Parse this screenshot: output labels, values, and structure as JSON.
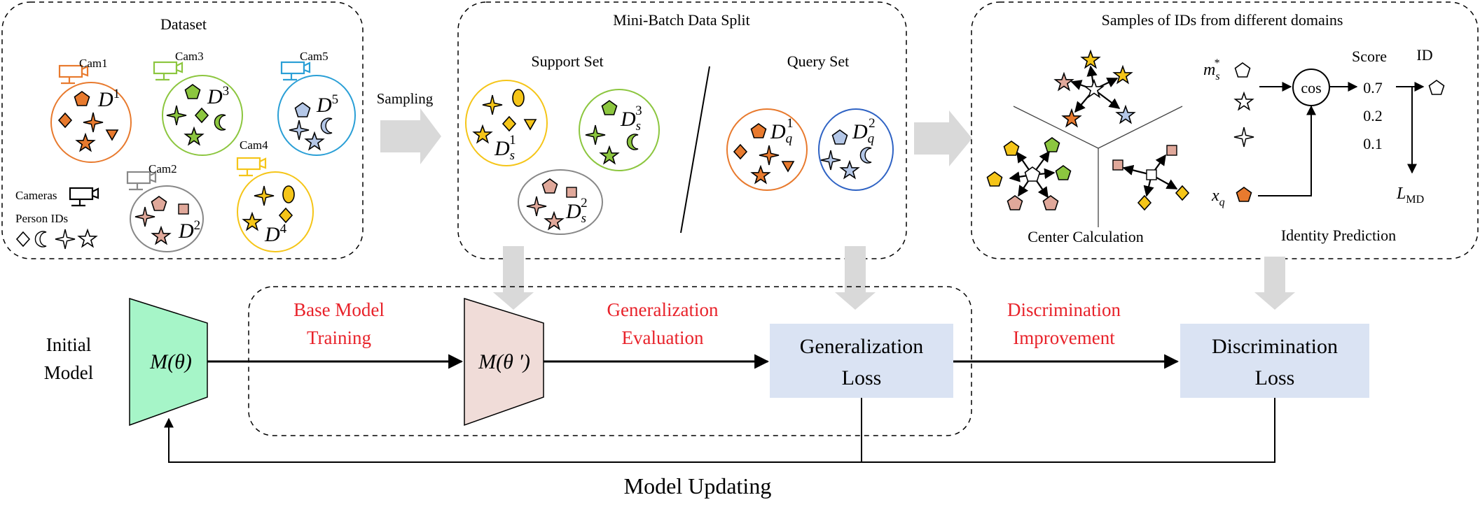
{
  "panels": {
    "dataset": {
      "title": "Dataset",
      "cams": [
        "Cam1",
        "Cam3",
        "Cam5",
        "Cam4",
        "Cam2"
      ],
      "domains": [
        "D",
        "D",
        "D",
        "D",
        "D"
      ],
      "domain_sups": [
        "1",
        "3",
        "5",
        "4",
        "2"
      ],
      "legend_cameras": "Cameras",
      "legend_ids": "Person IDs"
    },
    "minibatch": {
      "title": "Mini-Batch Data Split",
      "support": "Support Set",
      "query": "Query Set",
      "sets": [
        {
          "base": "D",
          "sub": "s",
          "sup": "1"
        },
        {
          "base": "D",
          "sub": "s",
          "sup": "3"
        },
        {
          "base": "D",
          "sub": "s",
          "sup": "2"
        },
        {
          "base": "D",
          "sub": "q",
          "sup": "1"
        },
        {
          "base": "D",
          "sub": "q",
          "sup": "2"
        }
      ]
    },
    "samples": {
      "title": "Samples of IDs from  different domains",
      "center": "Center Calculation",
      "identity": "Identity Prediction",
      "ms_base": "m",
      "ms_sub": "s",
      "ms_sup": "*",
      "xq_base": "x",
      "xq_sub": "q",
      "cos": "cos",
      "score_label": "Score",
      "scores": [
        "0.7",
        "0.2",
        "0.1"
      ],
      "id_label": "ID",
      "lmd_base": "L",
      "lmd_sub": "MD"
    }
  },
  "flow": {
    "sampling": "Sampling",
    "initial_model": [
      "Initial",
      "Model"
    ],
    "model_theta": "M(θ)",
    "model_theta_prime": "M(θ ′)",
    "base_training": [
      "Base Model",
      "Training"
    ],
    "gen_eval": [
      "Generalization",
      "Evaluation"
    ],
    "gen_loss": [
      "Generalization",
      "Loss"
    ],
    "disc_improve": [
      "Discrimination",
      "Improvement"
    ],
    "disc_loss": [
      "Discrimination",
      "Loss"
    ],
    "model_updating": "Model Updating"
  },
  "colors": {
    "orange": "#e87a2e",
    "green": "#8cc63f",
    "yellow": "#f5c518",
    "blue_light": "#b4c7e7",
    "gray_pink": "#e0a89a",
    "model_green": "#a6f5c8",
    "model_pink": "#f0dcd8",
    "loss_box": "#dae3f3",
    "arrow_gray": "#d9d9d9",
    "red_text": "#e8222a"
  }
}
